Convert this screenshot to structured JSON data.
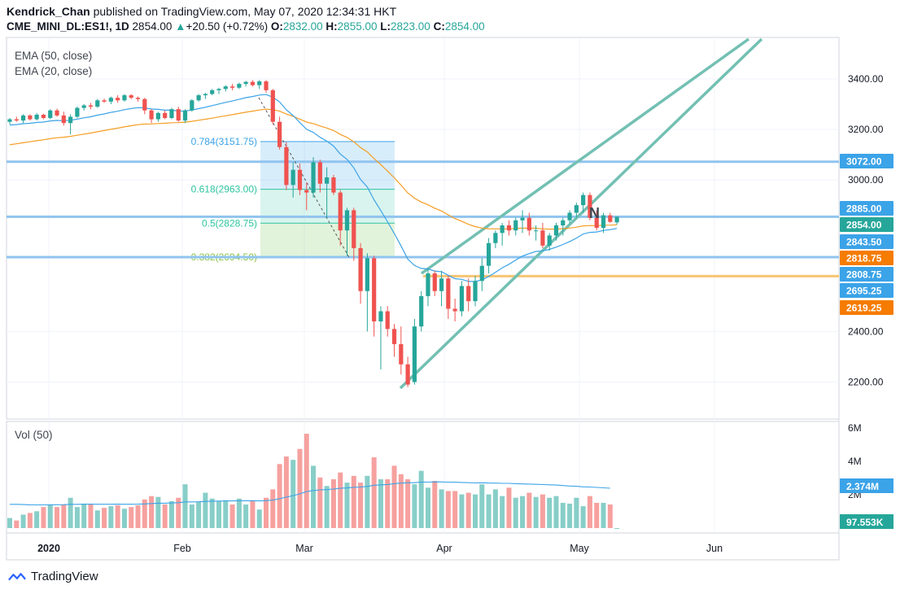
{
  "header": {
    "author": "Kendrick_Chan",
    "published_text": "published on TradingView.com, May 07, 2020 12:34:31 HKT",
    "symbol": "CME_MINI_DL:ES1!, 1D",
    "last": "2854.00",
    "change_arrow": "▲",
    "change": "+20.50 (+0.72%)",
    "o_label": "O:",
    "o": "2832.00",
    "h_label": "H:",
    "h": "2855.00",
    "l_label": "L:",
    "l": "2823.00",
    "c_label": "C:",
    "c": "2854.00"
  },
  "footer": {
    "brand": "TradingView"
  },
  "colors": {
    "up": "#26a69a",
    "down": "#ef5350",
    "ema50": "#f59d23",
    "ema20": "#3ba3e8",
    "hline": "#90c4ef",
    "trend": "#72c0b3",
    "grid": "#f0f3fa"
  },
  "chart_data": [
    {
      "type": "candlestick",
      "indicators": [
        "EMA (50, close)",
        "EMA (20, close)"
      ],
      "x_ticks": [
        "2020",
        "Feb",
        "Mar",
        "Apr",
        "May",
        "Jun"
      ],
      "y_ticks": [
        "2200.00",
        "2400.00",
        "3000.00",
        "3200.00",
        "3400.00"
      ],
      "ylim": [
        2100,
        3500
      ],
      "grid": true,
      "price_labels": [
        {
          "text": "3072.00",
          "value": 3072,
          "color": "#3ba3e8"
        },
        {
          "text": "2885.00",
          "value": 2885,
          "color": "#3ba3e8"
        },
        {
          "text": "2854.00",
          "value": 2854,
          "color": "#26a69a"
        },
        {
          "text": "2843.50",
          "value": 2843.5,
          "color": "#3ba3e8"
        },
        {
          "text": "2818.75",
          "value": 2818.75,
          "color": "#f57c00"
        },
        {
          "text": "2808.75",
          "value": 2808.75,
          "color": "#3ba3e8"
        },
        {
          "text": "2695.25",
          "value": 2695.25,
          "color": "#3ba3e8"
        },
        {
          "text": "2619.25",
          "value": 2619.25,
          "color": "#f57c00"
        }
      ],
      "horizontal_lines": [
        3072,
        2854,
        2694.5
      ],
      "orange_line": 2619.25,
      "fibonacci": [
        {
          "level": "0.784",
          "label": "0.784(3151.75)",
          "value": 3151.75,
          "color": "#3ba3e8"
        },
        {
          "level": "0.618",
          "label": "0.618(2963.00)",
          "value": 2963.0,
          "color": "#2ec4a0"
        },
        {
          "level": "0.5",
          "label": "0.5(2828.75)",
          "value": 2828.75,
          "color": "#2ec4a0"
        },
        {
          "level": "0.382",
          "label": "0.382(2694.50)",
          "value": 2694.5,
          "color": "#8bc34a"
        }
      ],
      "annotation": "N",
      "candles": [
        [
          3230,
          3245,
          3220,
          3240
        ],
        [
          3240,
          3250,
          3230,
          3235
        ],
        [
          3235,
          3260,
          3225,
          3255
        ],
        [
          3255,
          3260,
          3235,
          3240
        ],
        [
          3240,
          3265,
          3235,
          3258
        ],
        [
          3258,
          3262,
          3240,
          3245
        ],
        [
          3245,
          3280,
          3240,
          3275
        ],
        [
          3275,
          3282,
          3250,
          3255
        ],
        [
          3255,
          3270,
          3215,
          3225
        ],
        [
          3225,
          3260,
          3180,
          3250
        ],
        [
          3250,
          3290,
          3245,
          3285
        ],
        [
          3285,
          3300,
          3275,
          3295
        ],
        [
          3295,
          3305,
          3280,
          3290
        ],
        [
          3290,
          3320,
          3285,
          3315
        ],
        [
          3315,
          3322,
          3305,
          3310
        ],
        [
          3310,
          3330,
          3300,
          3325
        ],
        [
          3325,
          3335,
          3305,
          3315
        ],
        [
          3315,
          3340,
          3310,
          3335
        ],
        [
          3335,
          3340,
          3320,
          3325
        ],
        [
          3325,
          3330,
          3310,
          3320
        ],
        [
          3320,
          3325,
          3260,
          3275
        ],
        [
          3275,
          3280,
          3225,
          3240
        ],
        [
          3240,
          3270,
          3230,
          3265
        ],
        [
          3265,
          3275,
          3240,
          3245
        ],
        [
          3245,
          3285,
          3240,
          3280
        ],
        [
          3280,
          3290,
          3230,
          3235
        ],
        [
          3235,
          3280,
          3225,
          3275
        ],
        [
          3275,
          3320,
          3270,
          3315
        ],
        [
          3315,
          3340,
          3310,
          3335
        ],
        [
          3335,
          3345,
          3320,
          3340
        ],
        [
          3340,
          3360,
          3335,
          3355
        ],
        [
          3355,
          3365,
          3340,
          3360
        ],
        [
          3360,
          3375,
          3350,
          3370
        ],
        [
          3370,
          3380,
          3355,
          3365
        ],
        [
          3365,
          3385,
          3360,
          3380
        ],
        [
          3380,
          3392,
          3370,
          3388
        ],
        [
          3388,
          3395,
          3370,
          3375
        ],
        [
          3375,
          3395,
          3360,
          3390
        ],
        [
          3390,
          3395,
          3345,
          3355
        ],
        [
          3355,
          3360,
          3220,
          3230
        ],
        [
          3230,
          3250,
          3120,
          3130
        ],
        [
          3130,
          3150,
          2960,
          2980
        ],
        [
          2980,
          3070,
          2930,
          3040
        ],
        [
          3040,
          3065,
          2940,
          2960
        ],
        [
          2960,
          2990,
          2880,
          2950
        ],
        [
          2950,
          3090,
          2930,
          3070
        ],
        [
          3070,
          3080,
          2950,
          2985
        ],
        [
          2985,
          3050,
          2850,
          3010
        ],
        [
          3010,
          3020,
          2940,
          2950
        ],
        [
          2950,
          2960,
          2740,
          2800
        ],
        [
          2800,
          2890,
          2700,
          2880
        ],
        [
          2880,
          2890,
          2680,
          2730
        ],
        [
          2730,
          2750,
          2510,
          2560
        ],
        [
          2560,
          2710,
          2400,
          2690
        ],
        [
          2690,
          2700,
          2380,
          2440
        ],
        [
          2440,
          2500,
          2250,
          2480
        ],
        [
          2480,
          2500,
          2380,
          2410
        ],
        [
          2410,
          2430,
          2300,
          2350
        ],
        [
          2350,
          2420,
          2230,
          2270
        ],
        [
          2270,
          2300,
          2180,
          2190
        ],
        [
          2200,
          2450,
          2190,
          2420
        ],
        [
          2420,
          2560,
          2400,
          2540
        ],
        [
          2540,
          2650,
          2500,
          2630
        ],
        [
          2630,
          2640,
          2540,
          2560
        ],
        [
          2560,
          2640,
          2500,
          2610
        ],
        [
          2610,
          2620,
          2450,
          2490
        ],
        [
          2490,
          2530,
          2440,
          2480
        ],
        [
          2480,
          2600,
          2460,
          2580
        ],
        [
          2580,
          2610,
          2480,
          2520
        ],
        [
          2520,
          2620,
          2500,
          2600
        ],
        [
          2600,
          2690,
          2560,
          2660
        ],
        [
          2660,
          2770,
          2630,
          2750
        ],
        [
          2750,
          2800,
          2730,
          2790
        ],
        [
          2790,
          2830,
          2740,
          2820
        ],
        [
          2820,
          2840,
          2780,
          2800
        ],
        [
          2800,
          2850,
          2780,
          2840
        ],
        [
          2840,
          2880,
          2790,
          2850
        ],
        [
          2850,
          2870,
          2780,
          2800
        ],
        [
          2800,
          2820,
          2760,
          2800
        ],
        [
          2800,
          2830,
          2730,
          2740
        ],
        [
          2740,
          2790,
          2720,
          2780
        ],
        [
          2780,
          2830,
          2760,
          2820
        ],
        [
          2820,
          2850,
          2780,
          2840
        ],
        [
          2840,
          2880,
          2830,
          2870
        ],
        [
          2870,
          2910,
          2850,
          2900
        ],
        [
          2900,
          2950,
          2870,
          2940
        ],
        [
          2940,
          2950,
          2840,
          2850
        ],
        [
          2850,
          2880,
          2800,
          2810
        ],
        [
          2810,
          2870,
          2790,
          2860
        ],
        [
          2860,
          2870,
          2830,
          2834
        ],
        [
          2832,
          2855,
          2823,
          2854
        ]
      ]
    },
    {
      "type": "bar",
      "title": "Vol (50)",
      "y_ticks": [
        "6M",
        "4M",
        "2M"
      ],
      "ylim": [
        0,
        6500000
      ],
      "last_volume_label": "97.553K",
      "ma_label": "2.374M",
      "volumes": [
        0.7,
        0.55,
        0.9,
        1.0,
        1.1,
        1.35,
        1.5,
        1.35,
        1.5,
        1.9,
        1.35,
        1.55,
        1.5,
        1.15,
        1.3,
        1.4,
        1.45,
        1.25,
        1.35,
        1.45,
        1.8,
        2.0,
        1.95,
        1.5,
        1.7,
        1.9,
        2.7,
        1.5,
        1.65,
        2.2,
        1.85,
        1.7,
        1.75,
        1.5,
        1.85,
        1.5,
        1.7,
        1.2,
        1.9,
        2.4,
        3.9,
        4.35,
        4.15,
        4.8,
        5.7,
        3.8,
        3.1,
        2.6,
        3.0,
        3.4,
        2.8,
        3.2,
        2.8,
        3.2,
        4.3,
        3.0,
        3.0,
        3.8,
        3.3,
        3.0,
        2.7,
        3.5,
        2.5,
        2.9,
        2.4,
        2.3,
        2.3,
        2.1,
        2.2,
        2.1,
        2.7,
        2.1,
        2.4,
        2.0,
        2.5,
        1.9,
        2.0,
        2.2,
        1.95,
        2.1,
        1.9,
        2.0,
        1.6,
        1.55,
        1.9,
        1.4,
        2.0,
        1.6,
        1.6,
        1.5,
        0.1
      ]
    }
  ]
}
